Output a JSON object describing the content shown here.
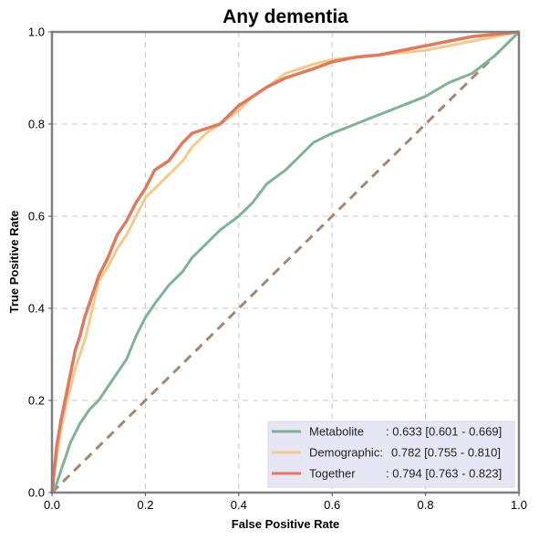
{
  "chart_data": {
    "type": "line",
    "title": "Any dementia",
    "xlabel": "False Positive Rate",
    "ylabel": "True Positive Rate",
    "xlim": [
      0,
      1
    ],
    "ylim": [
      0,
      1
    ],
    "xticks": [
      "0.0",
      "0.2",
      "0.4",
      "0.6",
      "0.8",
      "1.0"
    ],
    "yticks": [
      "0.0",
      "0.2",
      "0.4",
      "0.6",
      "0.8",
      "1.0"
    ],
    "grid": true,
    "legend_position": "lower-right",
    "reference_line": {
      "x": [
        0,
        1
      ],
      "y": [
        0,
        1
      ],
      "style": "dashed",
      "color": "#a38775"
    },
    "series": [
      {
        "name": "Metabolite",
        "legend_name": "Metabolite",
        "legend_value": ": 0.633 [0.601 - 0.669]",
        "color": "#7fb394",
        "x": [
          0,
          0.01,
          0.02,
          0.03,
          0.04,
          0.05,
          0.06,
          0.08,
          0.1,
          0.12,
          0.14,
          0.16,
          0.18,
          0.2,
          0.22,
          0.25,
          0.28,
          0.3,
          0.33,
          0.36,
          0.4,
          0.43,
          0.46,
          0.5,
          0.53,
          0.56,
          0.6,
          0.65,
          0.7,
          0.75,
          0.8,
          0.85,
          0.9,
          0.95,
          1.0
        ],
        "y": [
          0,
          0.02,
          0.05,
          0.08,
          0.11,
          0.13,
          0.15,
          0.18,
          0.2,
          0.23,
          0.26,
          0.29,
          0.34,
          0.38,
          0.41,
          0.45,
          0.48,
          0.51,
          0.54,
          0.57,
          0.6,
          0.63,
          0.67,
          0.7,
          0.73,
          0.76,
          0.78,
          0.8,
          0.82,
          0.84,
          0.86,
          0.89,
          0.91,
          0.95,
          1.0
        ]
      },
      {
        "name": "Demographic",
        "legend_name": "Demographic:",
        "legend_value": "0.782 [0.755 - 0.810]",
        "color": "#f4c98c",
        "x": [
          0,
          0.01,
          0.02,
          0.03,
          0.04,
          0.05,
          0.06,
          0.07,
          0.08,
          0.1,
          0.12,
          0.14,
          0.16,
          0.18,
          0.2,
          0.22,
          0.25,
          0.28,
          0.3,
          0.33,
          0.36,
          0.4,
          0.43,
          0.46,
          0.5,
          0.53,
          0.56,
          0.6,
          0.65,
          0.7,
          0.75,
          0.8,
          0.85,
          0.9,
          0.95,
          1.0
        ],
        "y": [
          0,
          0.08,
          0.14,
          0.19,
          0.23,
          0.27,
          0.3,
          0.33,
          0.37,
          0.46,
          0.49,
          0.53,
          0.56,
          0.6,
          0.64,
          0.66,
          0.69,
          0.72,
          0.75,
          0.78,
          0.8,
          0.83,
          0.86,
          0.88,
          0.91,
          0.92,
          0.93,
          0.94,
          0.945,
          0.95,
          0.955,
          0.96,
          0.97,
          0.98,
          0.99,
          1.0
        ]
      },
      {
        "name": "Together",
        "legend_name": "Together",
        "legend_value": ": 0.794 [0.763 - 0.823]",
        "color": "#e07a5f",
        "x": [
          0,
          0.01,
          0.02,
          0.03,
          0.04,
          0.05,
          0.06,
          0.07,
          0.08,
          0.1,
          0.12,
          0.14,
          0.16,
          0.18,
          0.2,
          0.22,
          0.25,
          0.28,
          0.3,
          0.33,
          0.36,
          0.4,
          0.43,
          0.46,
          0.5,
          0.53,
          0.56,
          0.6,
          0.65,
          0.7,
          0.75,
          0.8,
          0.85,
          0.9,
          0.95,
          1.0
        ],
        "y": [
          0,
          0.1,
          0.16,
          0.21,
          0.26,
          0.31,
          0.34,
          0.38,
          0.41,
          0.47,
          0.51,
          0.56,
          0.59,
          0.63,
          0.66,
          0.7,
          0.72,
          0.76,
          0.78,
          0.79,
          0.8,
          0.84,
          0.86,
          0.88,
          0.9,
          0.91,
          0.92,
          0.935,
          0.945,
          0.95,
          0.96,
          0.97,
          0.98,
          0.99,
          0.995,
          1.0
        ]
      }
    ]
  }
}
